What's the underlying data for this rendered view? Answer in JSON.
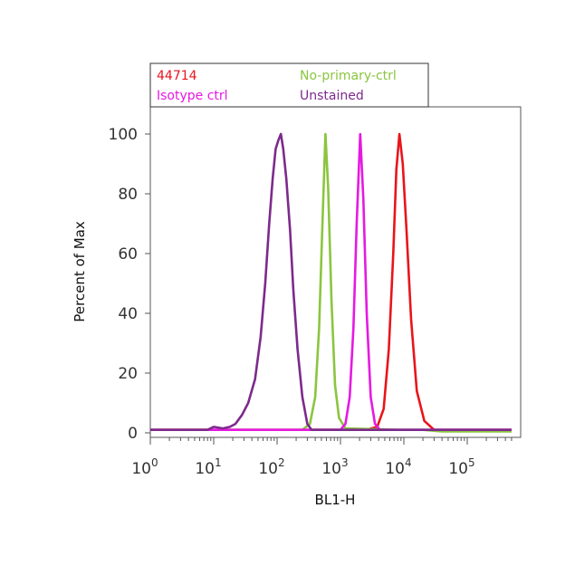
{
  "chart_data": {
    "type": "line",
    "title": "",
    "xlabel": "BL1-H",
    "ylabel": "Percent of Max",
    "x_scale": "log",
    "xlim": [
      1,
      500000
    ],
    "ylim": [
      0,
      110
    ],
    "x_ticks": [
      {
        "base": "10",
        "exp": "0"
      },
      {
        "base": "10",
        "exp": "1"
      },
      {
        "base": "10",
        "exp": "2"
      },
      {
        "base": "10",
        "exp": "3"
      },
      {
        "base": "10",
        "exp": "4"
      },
      {
        "base": "10",
        "exp": "5"
      }
    ],
    "y_ticks": [
      "0",
      "20",
      "40",
      "60",
      "80",
      "100"
    ],
    "grid": false,
    "legend_position": "top",
    "series": [
      {
        "name": "44714",
        "color": "#e8151b",
        "points": [
          [
            1,
            1
          ],
          [
            1000,
            1
          ],
          [
            2500,
            1
          ],
          [
            3800,
            2
          ],
          [
            4800,
            8
          ],
          [
            5800,
            28
          ],
          [
            6800,
            60
          ],
          [
            7600,
            88
          ],
          [
            8500,
            100
          ],
          [
            9600,
            90
          ],
          [
            11000,
            68
          ],
          [
            13000,
            38
          ],
          [
            16000,
            14
          ],
          [
            21000,
            4
          ],
          [
            30000,
            1
          ],
          [
            500000,
            1
          ]
        ]
      },
      {
        "name": "No-primary-ctrl",
        "color": "#8bc53f",
        "points": [
          [
            1,
            1
          ],
          [
            150,
            1
          ],
          [
            250,
            1
          ],
          [
            330,
            3
          ],
          [
            400,
            12
          ],
          [
            460,
            35
          ],
          [
            520,
            70
          ],
          [
            580,
            100
          ],
          [
            640,
            82
          ],
          [
            720,
            45
          ],
          [
            820,
            16
          ],
          [
            950,
            5
          ],
          [
            1200,
            1.5
          ],
          [
            8000,
            1
          ],
          [
            20000,
            1
          ],
          [
            40000,
            0.5
          ],
          [
            500000,
            0.5
          ]
        ]
      },
      {
        "name": "Isotype ctrl",
        "color": "#e619e2",
        "points": [
          [
            1,
            1
          ],
          [
            500,
            1
          ],
          [
            1000,
            1
          ],
          [
            1200,
            3
          ],
          [
            1400,
            12
          ],
          [
            1600,
            35
          ],
          [
            1800,
            70
          ],
          [
            2050,
            100
          ],
          [
            2300,
            78
          ],
          [
            2600,
            40
          ],
          [
            3000,
            12
          ],
          [
            3500,
            3
          ],
          [
            4200,
            1
          ],
          [
            500000,
            1
          ]
        ]
      },
      {
        "name": "Unstained",
        "color": "#7d2a8c",
        "points": [
          [
            1,
            1
          ],
          [
            8,
            1
          ],
          [
            10,
            2
          ],
          [
            14,
            1.5
          ],
          [
            18,
            2
          ],
          [
            22,
            3
          ],
          [
            28,
            6
          ],
          [
            35,
            10
          ],
          [
            45,
            18
          ],
          [
            55,
            32
          ],
          [
            65,
            50
          ],
          [
            75,
            70
          ],
          [
            85,
            85
          ],
          [
            95,
            95
          ],
          [
            105,
            98
          ],
          [
            115,
            100
          ],
          [
            125,
            95
          ],
          [
            140,
            85
          ],
          [
            160,
            68
          ],
          [
            180,
            48
          ],
          [
            210,
            28
          ],
          [
            250,
            12
          ],
          [
            300,
            3
          ],
          [
            350,
            1
          ],
          [
            500000,
            1
          ]
        ]
      }
    ]
  }
}
